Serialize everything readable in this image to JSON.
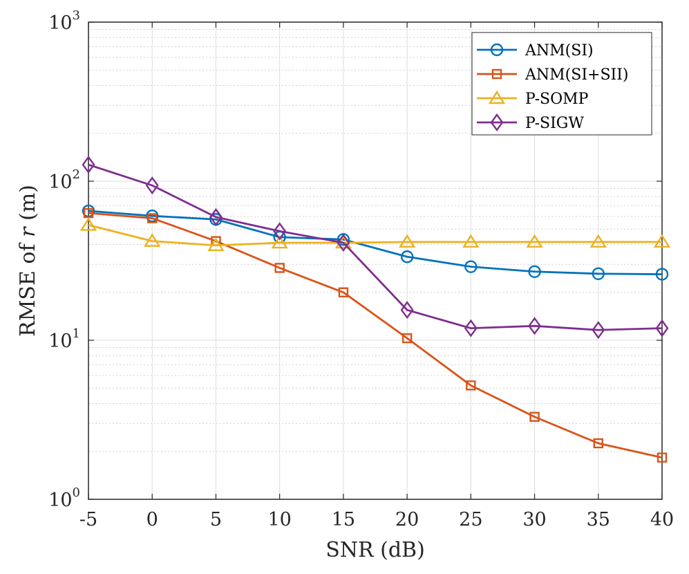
{
  "chart_data": {
    "type": "line",
    "title": "",
    "xlabel": "SNR (dB)",
    "ylabel_prefix": "RMSE of ",
    "ylabel_var": "r",
    "ylabel_suffix": " (m)",
    "x": [
      -5,
      0,
      5,
      10,
      15,
      20,
      25,
      30,
      35,
      40
    ],
    "x_tick_labels": [
      "-5",
      "0",
      "5",
      "10",
      "15",
      "20",
      "25",
      "30",
      "35",
      "40"
    ],
    "xlim": [
      -5,
      40
    ],
    "yscale": "log",
    "ylim": [
      1,
      1000
    ],
    "y_ticks": [
      {
        "value": 1,
        "base": "10",
        "exp": "0"
      },
      {
        "value": 10,
        "base": "10",
        "exp": "1"
      },
      {
        "value": 100,
        "base": "10",
        "exp": "2"
      },
      {
        "value": 1000,
        "base": "10",
        "exp": "3"
      }
    ],
    "grid": true,
    "legend_position": "top-right",
    "series": [
      {
        "name": "ANM(SI)",
        "marker": "circle",
        "color": "#0072BD",
        "values": [
          65,
          60.5,
          57.5,
          44.5,
          43,
          33.5,
          29,
          27,
          26.2,
          26
        ]
      },
      {
        "name": "ANM(SI+SII)",
        "marker": "square",
        "color": "#D95319",
        "values": [
          63,
          58.5,
          42,
          28.5,
          20,
          10.3,
          5.2,
          3.3,
          2.25,
          1.83
        ]
      },
      {
        "name": "P-SOMP",
        "marker": "triangle",
        "color": "#EDB120",
        "values": [
          53,
          42,
          39.5,
          41,
          41,
          41.5,
          41.5,
          41.5,
          41.5,
          41.5
        ]
      },
      {
        "name": "P-SIGW",
        "marker": "diamond",
        "color": "#7E2F8E",
        "values": [
          127,
          94,
          59.5,
          48.5,
          41,
          15.5,
          11.9,
          12.3,
          11.6,
          11.9
        ]
      }
    ]
  }
}
